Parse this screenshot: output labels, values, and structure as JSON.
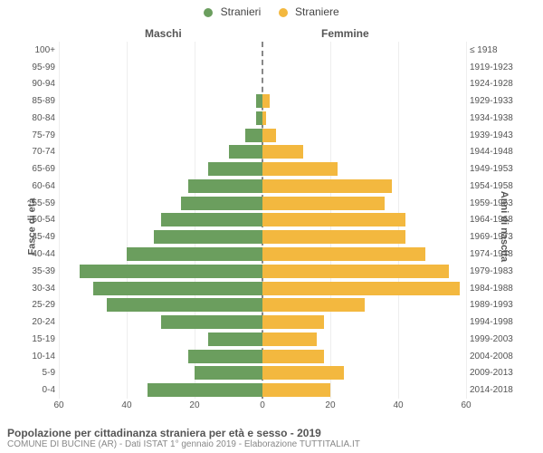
{
  "chart": {
    "type": "population-pyramid",
    "legend": [
      {
        "label": "Stranieri",
        "color": "#6b9e5e"
      },
      {
        "label": "Straniere",
        "color": "#f3b83f"
      }
    ],
    "column_titles": {
      "left": "Maschi",
      "right": "Femmine"
    },
    "yaxis_title_left": "Fasce di età",
    "yaxis_title_right": "Anni di nascita",
    "xaxis": {
      "max": 60,
      "ticks_left": [
        60,
        40,
        20
      ],
      "center": 0,
      "ticks_right": [
        20,
        40,
        60
      ]
    },
    "bar_colors": {
      "male": "#6b9e5e",
      "female": "#f3b83f"
    },
    "background_color": "#ffffff",
    "grid_color": "#eeeeee",
    "centerline_color": "#888888",
    "label_fontsize": 10,
    "rows": [
      {
        "age": "100+",
        "birth": "≤ 1918",
        "male": 0,
        "female": 0
      },
      {
        "age": "95-99",
        "birth": "1919-1923",
        "male": 0,
        "female": 0
      },
      {
        "age": "90-94",
        "birth": "1924-1928",
        "male": 0,
        "female": 0
      },
      {
        "age": "85-89",
        "birth": "1929-1933",
        "male": 2,
        "female": 2
      },
      {
        "age": "80-84",
        "birth": "1934-1938",
        "male": 2,
        "female": 1
      },
      {
        "age": "75-79",
        "birth": "1939-1943",
        "male": 5,
        "female": 4
      },
      {
        "age": "70-74",
        "birth": "1944-1948",
        "male": 10,
        "female": 12
      },
      {
        "age": "65-69",
        "birth": "1949-1953",
        "male": 16,
        "female": 22
      },
      {
        "age": "60-64",
        "birth": "1954-1958",
        "male": 22,
        "female": 38
      },
      {
        "age": "55-59",
        "birth": "1959-1963",
        "male": 24,
        "female": 36
      },
      {
        "age": "50-54",
        "birth": "1964-1968",
        "male": 30,
        "female": 42
      },
      {
        "age": "45-49",
        "birth": "1969-1973",
        "male": 32,
        "female": 42
      },
      {
        "age": "40-44",
        "birth": "1974-1978",
        "male": 40,
        "female": 48
      },
      {
        "age": "35-39",
        "birth": "1979-1983",
        "male": 54,
        "female": 55
      },
      {
        "age": "30-34",
        "birth": "1984-1988",
        "male": 50,
        "female": 58
      },
      {
        "age": "25-29",
        "birth": "1989-1993",
        "male": 46,
        "female": 30
      },
      {
        "age": "20-24",
        "birth": "1994-1998",
        "male": 30,
        "female": 18
      },
      {
        "age": "15-19",
        "birth": "1999-2003",
        "male": 16,
        "female": 16
      },
      {
        "age": "10-14",
        "birth": "2004-2008",
        "male": 22,
        "female": 18
      },
      {
        "age": "5-9",
        "birth": "2009-2013",
        "male": 20,
        "female": 24
      },
      {
        "age": "0-4",
        "birth": "2014-2018",
        "male": 34,
        "female": 20
      }
    ]
  },
  "footer": {
    "title": "Popolazione per cittadinanza straniera per età e sesso - 2019",
    "subtitle": "COMUNE DI BUCINE (AR) - Dati ISTAT 1° gennaio 2019 - Elaborazione TUTTITALIA.IT"
  }
}
